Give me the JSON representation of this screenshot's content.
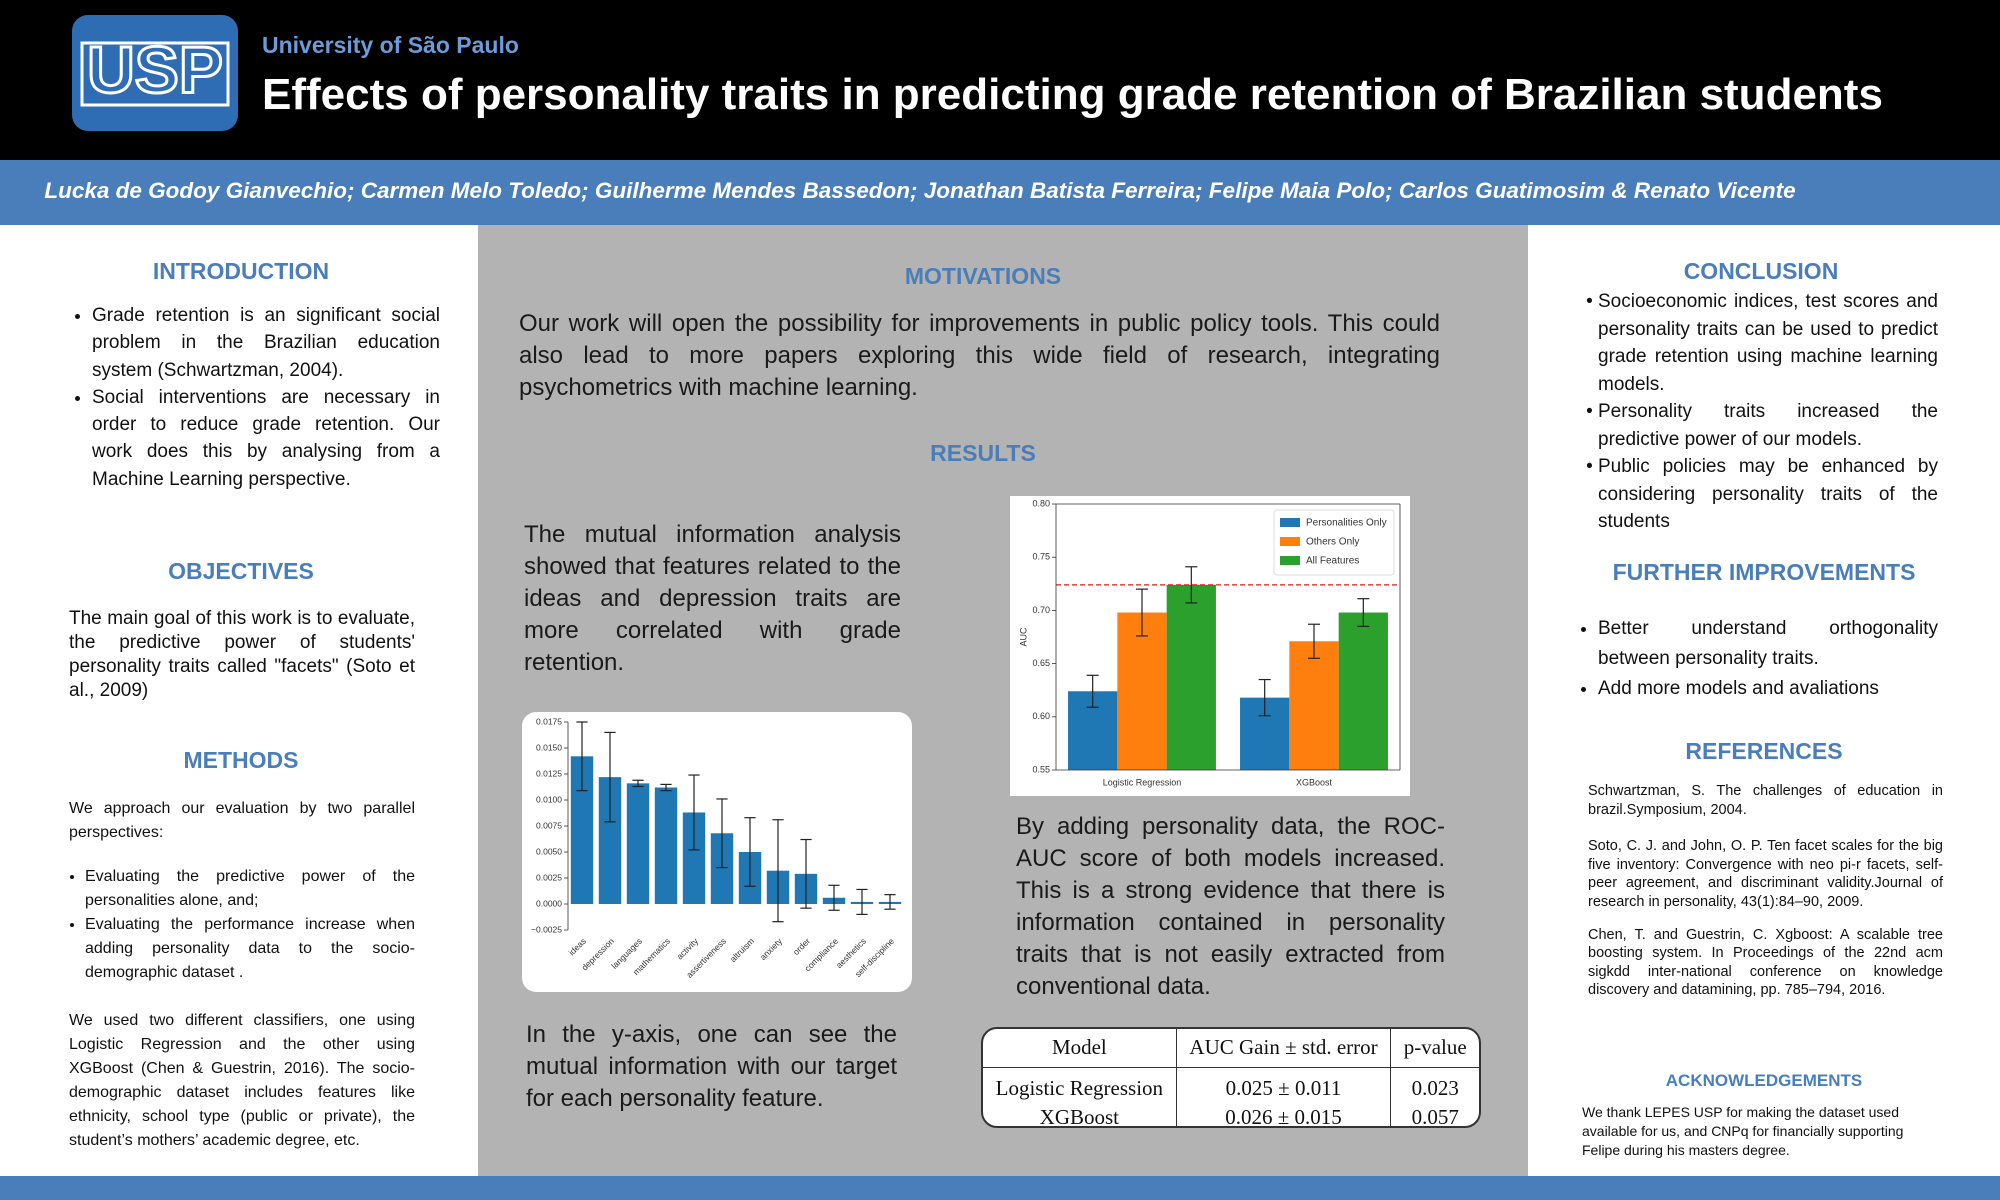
{
  "header": {
    "logo": "USP",
    "institution": "University of São Paulo",
    "title": "Effects of personality traits in predicting grade retention of Brazilian students"
  },
  "authors": "Lucka de Godoy Gianvechio; Carmen Melo Toledo; Guilherme Mendes Bassedon; Jonathan Batista Ferreira; Felipe Maia Polo; Carlos Guatimosim & Renato Vicente",
  "introduction": {
    "heading": "INTRODUCTION",
    "bullets": [
      "Grade retention is an significant social problem in the Brazilian education system (Schwartzman, 2004).",
      "Social interventions are necessary in order to reduce grade retention. Our work does this by analysing from a Machine Learning perspective."
    ]
  },
  "objectives": {
    "heading": "OBJECTIVES",
    "text": "The main goal of this work is to evaluate, the predictive power of students' personality traits called \"facets\" (Soto et al., 2009)"
  },
  "methods": {
    "heading": "METHODS",
    "intro": "We approach our evaluation by two parallel perspectives:",
    "bullets": [
      "Evaluating the predictive power of the personalities alone, and;",
      "Evaluating the performance increase when adding personality data to the socio-demographic dataset ."
    ],
    "text": "We used two different classifiers, one using Logistic Regression and the other using XGBoost (Chen & Guestrin, 2016). The socio-demographic dataset includes features like ethnicity, school type (public or private), the student’s mothers’ academic degree, etc."
  },
  "motivations": {
    "heading": "MOTIVATIONS",
    "text": "Our work will open the possibility for improvements in public policy tools. This could also lead to more papers exploring this wide field of research, integrating psychometrics with machine learning."
  },
  "results": {
    "heading": "RESULTS",
    "text_1": "The mutual information analysis showed that features related to the ideas and depression traits are more correlated with grade retention.",
    "mi_chart": {
      "type": "bar",
      "color": "#1f77b4",
      "categories": [
        "ideas",
        "depression",
        "languages",
        "mathematics",
        "activity",
        "assertiveness",
        "altruism",
        "anxiety",
        "order",
        "compliance",
        "aesthetics",
        "self-discipline"
      ],
      "values": [
        0.0142,
        0.0122,
        0.0116,
        0.0112,
        0.0088,
        0.0068,
        0.005,
        0.0032,
        0.0029,
        0.0006,
        0.0002,
        0.0002
      ],
      "errors": [
        0.0033,
        0.0043,
        0.0003,
        0.0003,
        0.0036,
        0.0033,
        0.0033,
        0.0049,
        0.0033,
        0.0012,
        0.0012,
        0.0007
      ],
      "ylim": [
        -0.0025,
        0.0175
      ],
      "yticks": [
        {
          "value": -0.0025,
          "label": "−0.0025"
        },
        {
          "value": 0,
          "label": "0.0000"
        },
        {
          "value": 0.0025,
          "label": "0.0025"
        },
        {
          "value": 0.005,
          "label": "0.0050"
        },
        {
          "value": 0.0075,
          "label": "0.0075"
        },
        {
          "value": 0.01,
          "label": "0.0100"
        },
        {
          "value": 0.0125,
          "label": "0.0125"
        },
        {
          "value": 0.015,
          "label": "0.0150"
        },
        {
          "value": 0.0175,
          "label": "0.0175"
        }
      ]
    },
    "text_2": "In the y-axis, one can see the mutual information with our target for each personality feature.",
    "auc_chart": {
      "type": "bar",
      "ylabel": "AUC",
      "categories": [
        "Logistic Regression",
        "XGBoost"
      ],
      "series": [
        {
          "name": "Personalities Only",
          "color": "#1f77b4",
          "values": [
            0.624,
            0.618
          ],
          "errors": [
            0.015,
            0.017
          ]
        },
        {
          "name": "Others Only",
          "color": "#ff7f0e",
          "values": [
            0.698,
            0.671
          ],
          "errors": [
            0.022,
            0.016
          ]
        },
        {
          "name": "All Features",
          "color": "#2ca02c",
          "values": [
            0.724,
            0.698
          ],
          "errors": [
            0.017,
            0.013
          ]
        }
      ],
      "reference_line": {
        "value": 0.724,
        "color": "#e41a1c"
      },
      "ylim": [
        0.55,
        0.8
      ],
      "yticks": [
        0.55,
        {
          "value": 0.6,
          "label": "0.60"
        },
        0.65,
        {
          "value": 0.7,
          "label": "0.70"
        },
        0.75,
        {
          "value": 0.8,
          "label": "0.80"
        }
      ],
      "legend": "upper right"
    },
    "text_3": "By adding personality data, the ROC-AUC score of both models increased. This is a strong evidence that there is information contained in personality traits that is not easily extracted from conventional data.",
    "table": {
      "header": [
        "Model",
        "AUC Gain ± std. error",
        "p-value"
      ],
      "rows": [
        [
          "Logistic Regression",
          "0.025 ± 0.011",
          "0.023"
        ],
        [
          "XGBoost",
          "0.026 ± 0.015",
          "0.057"
        ]
      ]
    }
  },
  "conclusion": {
    "heading": "CONCLUSION",
    "bullets": [
      "Socioeconomic indices, test scores and personality traits can be used to predict grade retention using machine learning models.",
      "Personality traits increased the predictive power of our models.",
      "Public policies may be enhanced by considering personality traits of the students"
    ]
  },
  "further_improvements": {
    "heading": "FURTHER IMPROVEMENTS",
    "bullets": [
      "Better understand orthogonality between personality traits.",
      "Add more models and avaliations"
    ]
  },
  "references": {
    "heading": "REFERENCES",
    "items": [
      "Schwartzman, S. The challenges of education in brazil.Symposium, 2004.",
      "Soto, C. J. and John, O. P. Ten facet scales for the big five inventory: Convergence with neo pi-r facets, self-peer agreement, and discriminant validity.Journal of research in personality, 43(1):84–90, 2009.",
      "Chen, T. and Guestrin, C. Xgboost: A scalable tree boosting system. In Proceedings of the 22nd acm sigkdd inter-national conference on knowledge discovery and datamining, pp. 785–794, 2016."
    ]
  },
  "acknowledgements": {
    "heading": "ACKNOWLEDGEMENTS",
    "text": "We thank LEPES USP for making the dataset used available for us, and CNPq for financially supporting Felipe during his masters degree."
  }
}
